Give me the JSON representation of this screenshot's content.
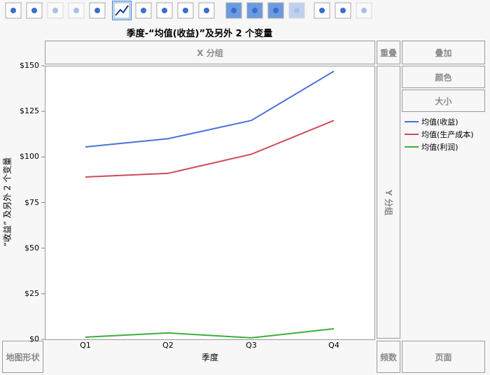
{
  "toolbar": {
    "icons": [
      "points",
      "smoother",
      "line-of-fit",
      "ellipse",
      "contour",
      "line",
      "bar",
      "area",
      "box-plot",
      "histogram",
      "heatmap",
      "pie",
      "treemap",
      "mosaic",
      "caption-box",
      "formula",
      "map-shapes"
    ],
    "selected": "line"
  },
  "title": "季度-“均值(收益)”及另外 2 个变量",
  "zones": {
    "x_group": "X 分组",
    "overlap": "重叠",
    "overlay": "叠加",
    "color": "颜色",
    "size": "大小",
    "y_group": "Y 分组",
    "map_shape": "地图形状",
    "freq": "频数",
    "page": "页面"
  },
  "legend": [
    {
      "label": "均值(收益)",
      "color": "#4a72d8"
    },
    {
      "label": "均值(生产成本)",
      "color": "#d04a5a"
    },
    {
      "label": "均值(利润)",
      "color": "#3bb03b"
    }
  ],
  "chart_data": {
    "type": "line",
    "xlabel": "季度",
    "ylabel": "“收益” 及另外 2 个变量",
    "categories": [
      "Q1",
      "Q2",
      "Q3",
      "Q4"
    ],
    "ylim": [
      0,
      150
    ],
    "yticks": [
      "$0",
      "$25",
      "$50",
      "$75",
      "$100",
      "$125",
      "$150"
    ],
    "series": [
      {
        "name": "均值(收益)",
        "color": "#4a72d8",
        "values": [
          105.5,
          110,
          120,
          147
        ]
      },
      {
        "name": "均值(生产成本)",
        "color": "#d04a5a",
        "values": [
          89,
          91,
          101.5,
          120
        ]
      },
      {
        "name": "均值(利润)",
        "color": "#3bb03b",
        "values": [
          1.2,
          3.5,
          0.8,
          5.8
        ]
      }
    ]
  }
}
